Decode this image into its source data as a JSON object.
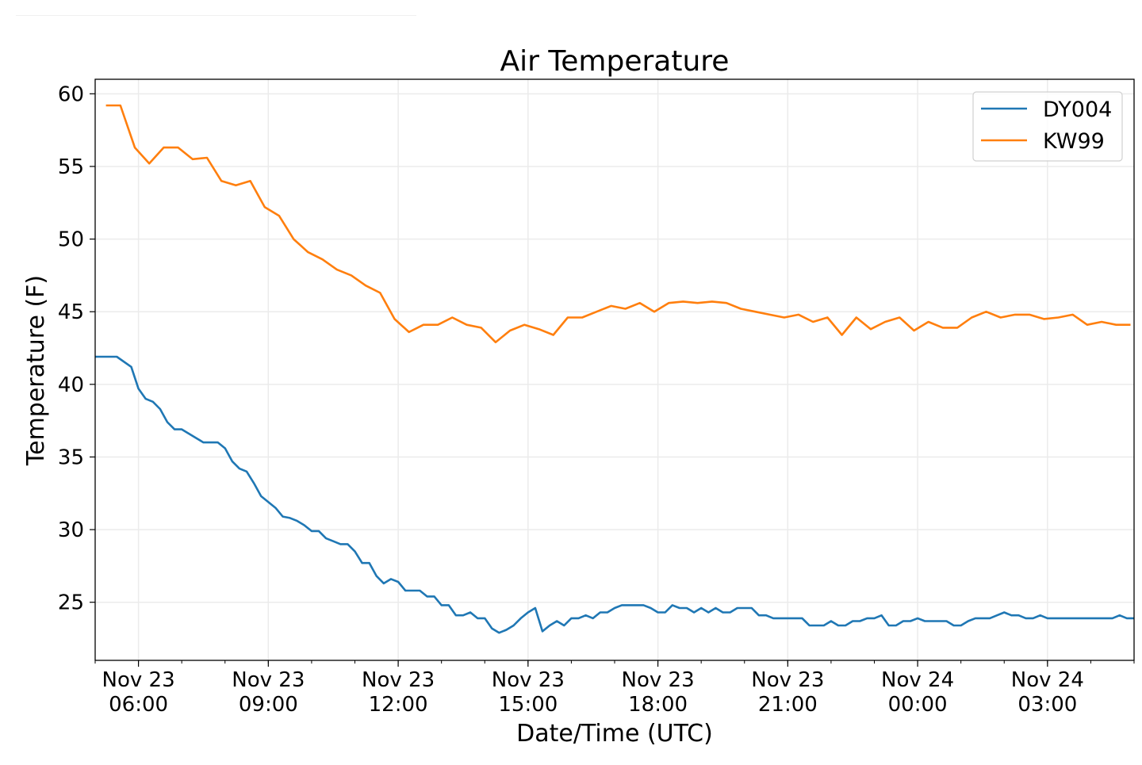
{
  "chart_data": {
    "type": "line",
    "title": "Air Temperature",
    "xlabel": "Date/Time (UTC)",
    "ylabel": "Temperature (F)",
    "xlim": [
      "Nov 23 05:00",
      "Nov 24 05:00"
    ],
    "ylim": [
      21,
      61
    ],
    "grid": true,
    "legend_position": "top-right",
    "yticks": [
      25,
      30,
      35,
      40,
      45,
      50,
      55,
      60
    ],
    "xticks": [
      {
        "at": "Nov 23 06:00",
        "line1": "Nov 23",
        "line2": "06:00"
      },
      {
        "at": "Nov 23 09:00",
        "line1": "Nov 23",
        "line2": "09:00"
      },
      {
        "at": "Nov 23 12:00",
        "line1": "Nov 23",
        "line2": "12:00"
      },
      {
        "at": "Nov 23 15:00",
        "line1": "Nov 23",
        "line2": "15:00"
      },
      {
        "at": "Nov 23 18:00",
        "line1": "Nov 23",
        "line2": "18:00"
      },
      {
        "at": "Nov 23 21:00",
        "line1": "Nov 23",
        "line2": "21:00"
      },
      {
        "at": "Nov 24 00:00",
        "line1": "Nov 24",
        "line2": "00:00"
      },
      {
        "at": "Nov 24 03:00",
        "line1": "Nov 24",
        "line2": "03:00"
      }
    ],
    "series": [
      {
        "name": "DY004",
        "color": "#1f77b4",
        "points": [
          [
            "Nov 23 05:00",
            41.9
          ],
          [
            "Nov 23 05:30",
            41.9
          ],
          [
            "Nov 23 05:50",
            41.2
          ],
          [
            "Nov 23 06:00",
            39.7
          ],
          [
            "Nov 23 06:10",
            39.0
          ],
          [
            "Nov 23 06:20",
            38.8
          ],
          [
            "Nov 23 06:30",
            38.3
          ],
          [
            "Nov 23 06:40",
            37.4
          ],
          [
            "Nov 23 06:50",
            36.9
          ],
          [
            "Nov 23 07:00",
            36.9
          ],
          [
            "Nov 23 07:10",
            36.6
          ],
          [
            "Nov 23 07:20",
            36.3
          ],
          [
            "Nov 23 07:30",
            36.0
          ],
          [
            "Nov 23 07:50",
            36.0
          ],
          [
            "Nov 23 08:00",
            35.6
          ],
          [
            "Nov 23 08:10",
            34.7
          ],
          [
            "Nov 23 08:20",
            34.2
          ],
          [
            "Nov 23 08:30",
            34.0
          ],
          [
            "Nov 23 08:40",
            33.2
          ],
          [
            "Nov 23 08:50",
            32.3
          ],
          [
            "Nov 23 09:00",
            31.9
          ],
          [
            "Nov 23 09:10",
            31.5
          ],
          [
            "Nov 23 09:20",
            30.9
          ],
          [
            "Nov 23 09:30",
            30.8
          ],
          [
            "Nov 23 09:40",
            30.6
          ],
          [
            "Nov 23 09:50",
            30.3
          ],
          [
            "Nov 23 10:00",
            29.9
          ],
          [
            "Nov 23 10:10",
            29.9
          ],
          [
            "Nov 23 10:20",
            29.4
          ],
          [
            "Nov 23 10:30",
            29.2
          ],
          [
            "Nov 23 10:40",
            29.0
          ],
          [
            "Nov 23 10:50",
            29.0
          ],
          [
            "Nov 23 11:00",
            28.5
          ],
          [
            "Nov 23 11:10",
            27.7
          ],
          [
            "Nov 23 11:20",
            27.7
          ],
          [
            "Nov 23 11:30",
            26.8
          ],
          [
            "Nov 23 11:40",
            26.3
          ],
          [
            "Nov 23 11:50",
            26.6
          ],
          [
            "Nov 23 12:00",
            26.4
          ],
          [
            "Nov 23 12:10",
            25.8
          ],
          [
            "Nov 23 12:30",
            25.8
          ],
          [
            "Nov 23 12:40",
            25.4
          ],
          [
            "Nov 23 12:50",
            25.4
          ],
          [
            "Nov 23 13:00",
            24.8
          ],
          [
            "Nov 23 13:10",
            24.8
          ],
          [
            "Nov 23 13:20",
            24.1
          ],
          [
            "Nov 23 13:30",
            24.1
          ],
          [
            "Nov 23 13:40",
            24.3
          ],
          [
            "Nov 23 13:50",
            23.9
          ],
          [
            "Nov 23 14:00",
            23.9
          ],
          [
            "Nov 23 14:10",
            23.2
          ],
          [
            "Nov 23 14:20",
            22.9
          ],
          [
            "Nov 23 14:30",
            23.1
          ],
          [
            "Nov 23 14:40",
            23.4
          ],
          [
            "Nov 23 14:50",
            23.9
          ],
          [
            "Nov 23 15:00",
            24.3
          ],
          [
            "Nov 23 15:10",
            24.6
          ],
          [
            "Nov 23 15:20",
            23.0
          ],
          [
            "Nov 23 15:30",
            23.4
          ],
          [
            "Nov 23 15:40",
            23.7
          ],
          [
            "Nov 23 15:50",
            23.4
          ],
          [
            "Nov 23 16:00",
            23.9
          ],
          [
            "Nov 23 16:10",
            23.9
          ],
          [
            "Nov 23 16:20",
            24.1
          ],
          [
            "Nov 23 16:30",
            23.9
          ],
          [
            "Nov 23 16:40",
            24.3
          ],
          [
            "Nov 23 16:50",
            24.3
          ],
          [
            "Nov 23 17:00",
            24.6
          ],
          [
            "Nov 23 17:10",
            24.8
          ],
          [
            "Nov 23 17:20",
            24.8
          ],
          [
            "Nov 23 17:30",
            24.8
          ],
          [
            "Nov 23 17:40",
            24.8
          ],
          [
            "Nov 23 17:50",
            24.6
          ],
          [
            "Nov 23 18:00",
            24.3
          ],
          [
            "Nov 23 18:10",
            24.3
          ],
          [
            "Nov 23 18:20",
            24.8
          ],
          [
            "Nov 23 18:30",
            24.6
          ],
          [
            "Nov 23 18:40",
            24.6
          ],
          [
            "Nov 23 18:50",
            24.3
          ],
          [
            "Nov 23 19:00",
            24.6
          ],
          [
            "Nov 23 19:10",
            24.3
          ],
          [
            "Nov 23 19:20",
            24.6
          ],
          [
            "Nov 23 19:30",
            24.3
          ],
          [
            "Nov 23 19:40",
            24.3
          ],
          [
            "Nov 23 19:50",
            24.6
          ],
          [
            "Nov 23 20:00",
            24.6
          ],
          [
            "Nov 23 20:10",
            24.6
          ],
          [
            "Nov 23 20:20",
            24.1
          ],
          [
            "Nov 23 20:30",
            24.1
          ],
          [
            "Nov 23 20:40",
            23.9
          ],
          [
            "Nov 23 21:20",
            23.9
          ],
          [
            "Nov 23 21:30",
            23.4
          ],
          [
            "Nov 23 21:50",
            23.4
          ],
          [
            "Nov 23 22:00",
            23.7
          ],
          [
            "Nov 23 22:10",
            23.4
          ],
          [
            "Nov 23 22:20",
            23.4
          ],
          [
            "Nov 23 22:30",
            23.7
          ],
          [
            "Nov 23 22:40",
            23.7
          ],
          [
            "Nov 23 22:50",
            23.9
          ],
          [
            "Nov 23 23:00",
            23.9
          ],
          [
            "Nov 23 23:10",
            24.1
          ],
          [
            "Nov 23 23:20",
            23.4
          ],
          [
            "Nov 23 23:30",
            23.4
          ],
          [
            "Nov 23 23:40",
            23.7
          ],
          [
            "Nov 23 23:50",
            23.7
          ],
          [
            "Nov 24 00:00",
            23.9
          ],
          [
            "Nov 24 00:10",
            23.7
          ],
          [
            "Nov 24 00:40",
            23.7
          ],
          [
            "Nov 24 00:50",
            23.4
          ],
          [
            "Nov 24 01:00",
            23.4
          ],
          [
            "Nov 24 01:10",
            23.7
          ],
          [
            "Nov 24 01:20",
            23.9
          ],
          [
            "Nov 24 01:40",
            23.9
          ],
          [
            "Nov 24 01:50",
            24.1
          ],
          [
            "Nov 24 02:00",
            24.3
          ],
          [
            "Nov 24 02:10",
            24.1
          ],
          [
            "Nov 24 02:20",
            24.1
          ],
          [
            "Nov 24 02:30",
            23.9
          ],
          [
            "Nov 24 02:40",
            23.9
          ],
          [
            "Nov 24 02:50",
            24.1
          ],
          [
            "Nov 24 03:00",
            23.9
          ],
          [
            "Nov 24 04:30",
            23.9
          ],
          [
            "Nov 24 04:40",
            24.1
          ],
          [
            "Nov 24 04:50",
            23.9
          ],
          [
            "Nov 24 05:00",
            23.9
          ]
        ]
      },
      {
        "name": "KW99",
        "color": "#ff7f0e",
        "points": [
          [
            "Nov 23 05:15",
            59.2
          ],
          [
            "Nov 23 05:35",
            59.2
          ],
          [
            "Nov 23 05:55",
            56.3
          ],
          [
            "Nov 23 06:15",
            55.2
          ],
          [
            "Nov 23 06:35",
            56.3
          ],
          [
            "Nov 23 06:55",
            56.3
          ],
          [
            "Nov 23 07:15",
            55.5
          ],
          [
            "Nov 23 07:35",
            55.6
          ],
          [
            "Nov 23 07:55",
            54.0
          ],
          [
            "Nov 23 08:15",
            53.7
          ],
          [
            "Nov 23 08:35",
            54.0
          ],
          [
            "Nov 23 08:55",
            52.2
          ],
          [
            "Nov 23 09:15",
            51.6
          ],
          [
            "Nov 23 09:35",
            50.0
          ],
          [
            "Nov 23 09:55",
            49.1
          ],
          [
            "Nov 23 10:15",
            48.6
          ],
          [
            "Nov 23 10:35",
            47.9
          ],
          [
            "Nov 23 10:55",
            47.5
          ],
          [
            "Nov 23 11:15",
            46.8
          ],
          [
            "Nov 23 11:35",
            46.3
          ],
          [
            "Nov 23 11:55",
            44.5
          ],
          [
            "Nov 23 12:15",
            43.6
          ],
          [
            "Nov 23 12:35",
            44.1
          ],
          [
            "Nov 23 12:55",
            44.1
          ],
          [
            "Nov 23 13:15",
            44.6
          ],
          [
            "Nov 23 13:35",
            44.1
          ],
          [
            "Nov 23 13:55",
            43.9
          ],
          [
            "Nov 23 14:15",
            42.9
          ],
          [
            "Nov 23 14:35",
            43.7
          ],
          [
            "Nov 23 14:55",
            44.1
          ],
          [
            "Nov 23 15:15",
            43.8
          ],
          [
            "Nov 23 15:35",
            43.4
          ],
          [
            "Nov 23 15:55",
            44.6
          ],
          [
            "Nov 23 16:15",
            44.6
          ],
          [
            "Nov 23 16:35",
            45.0
          ],
          [
            "Nov 23 16:55",
            45.4
          ],
          [
            "Nov 23 17:15",
            45.2
          ],
          [
            "Nov 23 17:35",
            45.6
          ],
          [
            "Nov 23 17:55",
            45.0
          ],
          [
            "Nov 23 18:15",
            45.6
          ],
          [
            "Nov 23 18:35",
            45.7
          ],
          [
            "Nov 23 18:55",
            45.6
          ],
          [
            "Nov 23 19:15",
            45.7
          ],
          [
            "Nov 23 19:35",
            45.6
          ],
          [
            "Nov 23 19:55",
            45.2
          ],
          [
            "Nov 23 20:15",
            45.0
          ],
          [
            "Nov 23 20:35",
            44.8
          ],
          [
            "Nov 23 20:55",
            44.6
          ],
          [
            "Nov 23 21:15",
            44.8
          ],
          [
            "Nov 23 21:35",
            44.3
          ],
          [
            "Nov 23 21:55",
            44.6
          ],
          [
            "Nov 23 22:15",
            43.4
          ],
          [
            "Nov 23 22:35",
            44.6
          ],
          [
            "Nov 23 22:55",
            43.8
          ],
          [
            "Nov 23 23:15",
            44.3
          ],
          [
            "Nov 23 23:35",
            44.6
          ],
          [
            "Nov 23 23:55",
            43.7
          ],
          [
            "Nov 24 00:15",
            44.3
          ],
          [
            "Nov 24 00:35",
            43.9
          ],
          [
            "Nov 24 00:55",
            43.9
          ],
          [
            "Nov 24 01:15",
            44.6
          ],
          [
            "Nov 24 01:35",
            45.0
          ],
          [
            "Nov 24 01:55",
            44.6
          ],
          [
            "Nov 24 02:15",
            44.8
          ],
          [
            "Nov 24 02:35",
            44.8
          ],
          [
            "Nov 24 02:55",
            44.5
          ],
          [
            "Nov 24 03:15",
            44.6
          ],
          [
            "Nov 24 03:35",
            44.8
          ],
          [
            "Nov 24 03:55",
            44.1
          ],
          [
            "Nov 24 04:15",
            44.3
          ],
          [
            "Nov 24 04:35",
            44.1
          ],
          [
            "Nov 24 04:55",
            44.1
          ]
        ]
      }
    ]
  }
}
